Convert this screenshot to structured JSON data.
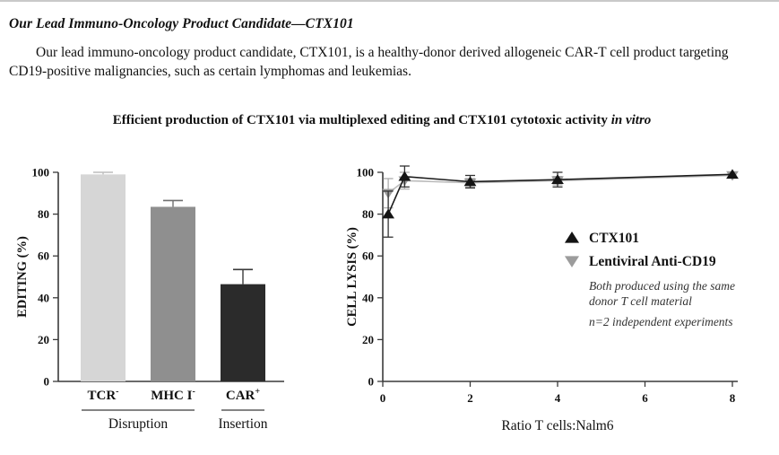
{
  "document": {
    "section_title": "Our Lead Immuno-Oncology Product Candidate—CTX101",
    "paragraph": "Our lead immuno-oncology product candidate, CTX101, is a healthy-donor derived allogeneic CAR-T cell product targeting CD19-positive malignancies, such as certain lymphomas and leukemias."
  },
  "figure": {
    "heading_main": "Efficient production of CTX101 via multiplexed editing and CTX101 cytotoxic activity ",
    "heading_italic": "in vitro"
  },
  "colors": {
    "text": "#111111",
    "axis": "#3a3a3a",
    "page_background": "#ffffff",
    "top_border": "#c9c9c9"
  },
  "chart_data": [
    {
      "type": "bar",
      "title": "",
      "xlabel": "",
      "ylabel": "EDITING (%)",
      "ylim": [
        0,
        100
      ],
      "yticks": [
        0,
        20,
        40,
        60,
        80,
        100
      ],
      "grid": false,
      "categories": [
        {
          "text": "TCR",
          "sup": "-"
        },
        {
          "text": "MHC I",
          "sup": "-"
        },
        {
          "text": "CAR",
          "sup": "+"
        }
      ],
      "values": [
        99,
        83.5,
        46.5
      ],
      "errors_plus": [
        1,
        3,
        7
      ],
      "bar_colors": [
        "#d6d6d6",
        "#8f8f8f",
        "#2b2b2b"
      ],
      "error_colors": [
        "#bdbdbd",
        "#707070",
        "#3a3a3a"
      ],
      "groups": [
        {
          "label": "Disruption",
          "from": 0,
          "to": 1
        },
        {
          "label": "Insertion",
          "from": 2,
          "to": 2
        }
      ]
    },
    {
      "type": "line",
      "title": "",
      "xlabel": "Ratio T cells:Nalm6",
      "ylabel": "CELL LYSIS (%)",
      "xlim": [
        0,
        8
      ],
      "ylim": [
        0,
        100
      ],
      "xticks": [
        0,
        2,
        4,
        6,
        8
      ],
      "yticks": [
        0,
        20,
        40,
        60,
        80,
        100
      ],
      "grid": false,
      "legend_position": "inside-right",
      "series": [
        {
          "name": "CTX101",
          "marker": "triangle-up",
          "marker_color": "#141414",
          "line_color": "#1c1c1c",
          "error_color": "#333333",
          "x": [
            0.125,
            0.5,
            2,
            4,
            8
          ],
          "y": [
            80,
            98,
            95.5,
            96.5,
            99
          ],
          "err": [
            11,
            5,
            3,
            3.5,
            0
          ]
        },
        {
          "name": "Lentiviral Anti-CD19",
          "marker": "triangle-down",
          "marker_color": "#9c9c9c",
          "line_color": "#bcbcbc",
          "error_color": "#adadad",
          "x": [
            0.125,
            0.5,
            2,
            4,
            8
          ],
          "y": [
            90,
            96,
            95,
            96,
            98.5
          ],
          "err": [
            7,
            4,
            2,
            2,
            0
          ]
        }
      ],
      "legend_notes": [
        "Both produced using the same\ndonor T cell material",
        "n=2 independent experiments"
      ]
    }
  ]
}
